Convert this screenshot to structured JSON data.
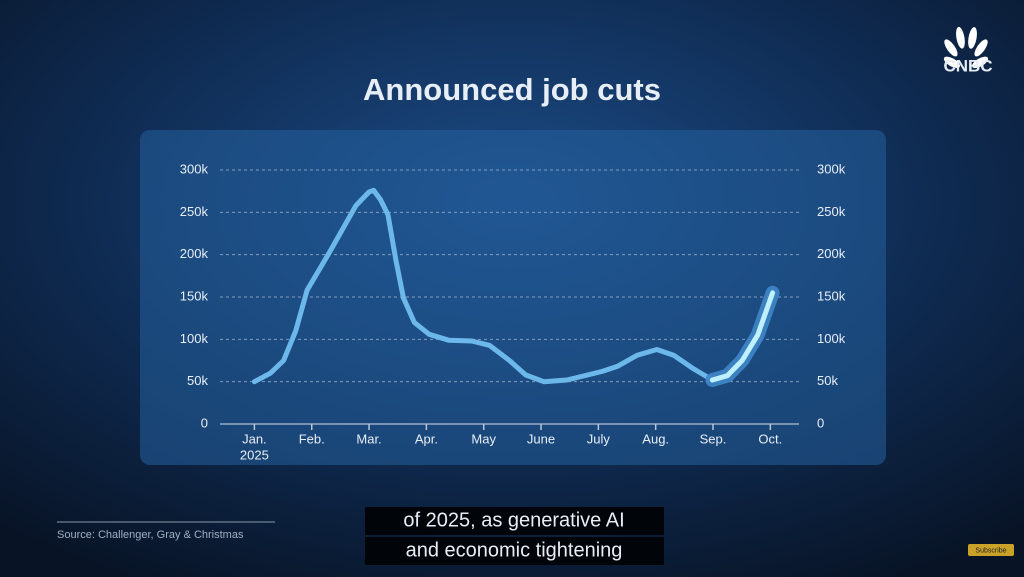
{
  "chart_data": {
    "type": "line",
    "title": "Announced job cuts",
    "x": [
      0,
      0.28,
      0.51,
      0.72,
      0.92,
      1.33,
      1.77,
      2.0,
      2.08,
      2.2,
      2.33,
      2.47,
      2.6,
      2.79,
      3.05,
      3.39,
      3.79,
      4.1,
      4.45,
      4.73,
      5.05,
      5.45,
      6.06,
      6.33,
      6.67,
      7.02,
      7.32,
      7.64,
      7.99,
      8.25,
      8.51,
      8.78,
      9.04
    ],
    "values": [
      50000,
      60000,
      75000,
      110000,
      158000,
      205000,
      258000,
      274000,
      276000,
      265000,
      247000,
      193000,
      149000,
      120000,
      106000,
      99000,
      98000,
      93000,
      75000,
      58000,
      50000,
      52000,
      62000,
      68000,
      81000,
      88000,
      81000,
      66000,
      52000,
      57000,
      75000,
      105000,
      155000
    ],
    "color": "#6db8ea",
    "xlim": [
      -0.6,
      9.5
    ],
    "xticks": [
      {
        "value": 0,
        "label": "Jan."
      },
      {
        "value": 1,
        "label": "Feb."
      },
      {
        "value": 2,
        "label": "Mar."
      },
      {
        "value": 3,
        "label": "Apr."
      },
      {
        "value": 4,
        "label": "May"
      },
      {
        "value": 5,
        "label": "June"
      },
      {
        "value": 6,
        "label": "July"
      },
      {
        "value": 7,
        "label": "Aug."
      },
      {
        "value": 8,
        "label": "Sep."
      },
      {
        "value": 9,
        "label": "Oct."
      }
    ],
    "x_first_tick_year": "2025",
    "ylim": [
      0,
      300000
    ],
    "yticks": [
      0,
      {
        "value": 50000,
        "label": "50k"
      },
      {
        "value": 100000,
        "label": "100k"
      },
      {
        "value": 150000,
        "label": "150k"
      },
      {
        "value": 200000,
        "label": "200k"
      },
      {
        "value": 250000,
        "label": "250k"
      },
      {
        "value": 300000,
        "label": "300k"
      }
    ],
    "y2lim": [
      0,
      300000
    ],
    "y2ticks": [
      0,
      {
        "value": 50000,
        "label": "50k"
      },
      {
        "value": 100000,
        "label": "100k"
      },
      {
        "value": 150000,
        "label": "150k"
      },
      {
        "value": 200000,
        "label": "200k"
      },
      {
        "value": 250000,
        "label": "250k"
      },
      {
        "value": 300000,
        "label": "300k"
      }
    ],
    "grid": true
  },
  "source": "Source: Challenger, Gray & Christmas",
  "caption": [
    "of 2025, as generative AI",
    "and economic tightening"
  ],
  "logo": "CNBC",
  "subscribe": "Subscribe"
}
